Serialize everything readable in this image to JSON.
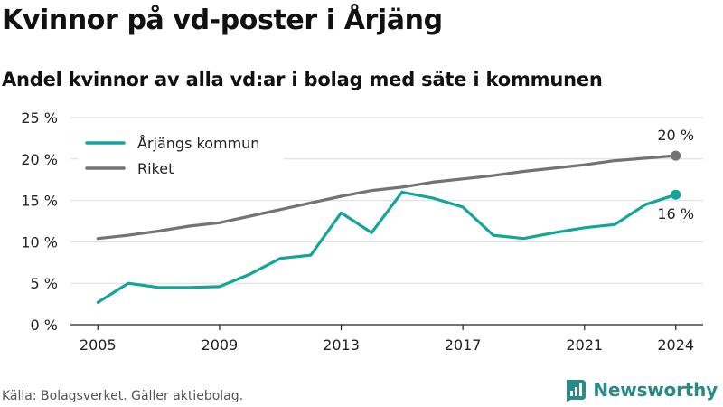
{
  "title": "Kvinnor på vd-poster i Årjäng",
  "subtitle": "Andel kvinnor av alla vd:ar i bolag med säte i kommunen",
  "source": "Källa: Bolagsverket. Gäller aktiebolag.",
  "brand": {
    "name": "Newsworthy",
    "icon": "newsworthy-logo-icon",
    "color": "#2a8a86"
  },
  "chart_data": {
    "type": "line",
    "x": [
      2005,
      2006,
      2007,
      2008,
      2009,
      2010,
      2011,
      2012,
      2013,
      2014,
      2015,
      2016,
      2017,
      2018,
      2019,
      2020,
      2021,
      2022,
      2023,
      2024
    ],
    "xlim": [
      2004.1,
      2024.9
    ],
    "ylim": [
      0,
      25
    ],
    "x_ticks": [
      2005,
      2009,
      2013,
      2017,
      2021,
      2024
    ],
    "y_ticks": [
      0,
      5,
      10,
      15,
      20,
      25
    ],
    "y_tick_labels": [
      "0 %",
      "5 %",
      "10 %",
      "15 %",
      "20 %",
      "25 %"
    ],
    "grid": true,
    "legend_position": "top-left",
    "series": [
      {
        "name": "Årjängs kommun",
        "color": "#14a59a",
        "values": [
          2.7,
          5.0,
          4.5,
          4.5,
          4.6,
          6.1,
          8.0,
          8.4,
          13.5,
          11.1,
          16.0,
          15.3,
          14.2,
          10.8,
          10.4,
          11.1,
          11.7,
          12.1,
          14.5,
          15.7
        ],
        "end_label": "16 %"
      },
      {
        "name": "Riket",
        "color": "#737373",
        "values": [
          10.4,
          10.8,
          11.3,
          11.9,
          12.3,
          13.1,
          13.9,
          14.7,
          15.5,
          16.2,
          16.6,
          17.2,
          17.6,
          18.0,
          18.5,
          18.9,
          19.3,
          19.8,
          20.1,
          20.4
        ],
        "end_label": "20 %"
      }
    ]
  }
}
